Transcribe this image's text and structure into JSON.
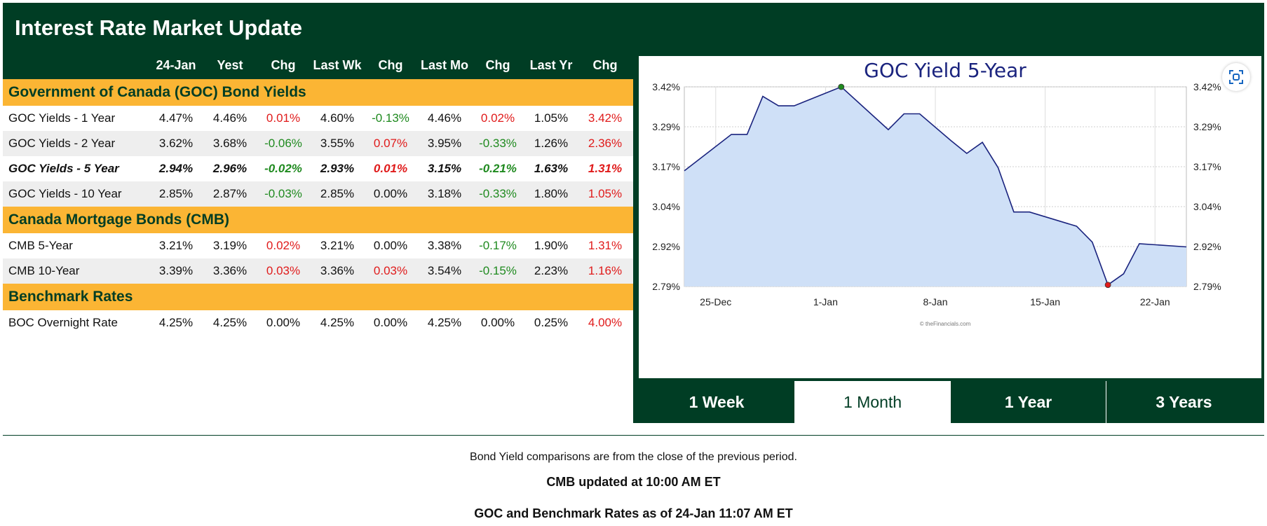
{
  "title": "Interest Rate Market Update",
  "columns": [
    "24-Jan",
    "Yest",
    "Chg",
    "Last Wk",
    "Chg",
    "Last Mo",
    "Chg",
    "Last Yr",
    "Chg"
  ],
  "sections": [
    {
      "title": "Government of Canada (GOC) Bond Yields",
      "rows": [
        {
          "label": "GOC Yields - 1 Year",
          "values": [
            "4.47%",
            "4.46%",
            "0.01%",
            "4.60%",
            "-0.13%",
            "4.46%",
            "0.02%",
            "1.05%",
            "3.42%"
          ]
        },
        {
          "label": "GOC Yields - 2 Year",
          "values": [
            "3.62%",
            "3.68%",
            "-0.06%",
            "3.55%",
            "0.07%",
            "3.95%",
            "-0.33%",
            "1.26%",
            "2.36%"
          ]
        },
        {
          "label": "GOC Yields - 5 Year",
          "values": [
            "2.94%",
            "2.96%",
            "-0.02%",
            "2.93%",
            "0.01%",
            "3.15%",
            "-0.21%",
            "1.63%",
            "1.31%"
          ],
          "emphasis": true
        },
        {
          "label": "GOC Yields - 10 Year",
          "values": [
            "2.85%",
            "2.87%",
            "-0.03%",
            "2.85%",
            "0.00%",
            "3.18%",
            "-0.33%",
            "1.80%",
            "1.05%"
          ]
        }
      ]
    },
    {
      "title": "Canada Mortgage Bonds (CMB)",
      "rows": [
        {
          "label": "CMB 5-Year",
          "values": [
            "3.21%",
            "3.19%",
            "0.02%",
            "3.21%",
            "0.00%",
            "3.38%",
            "-0.17%",
            "1.90%",
            "1.31%"
          ]
        },
        {
          "label": "CMB 10-Year",
          "values": [
            "3.39%",
            "3.36%",
            "0.03%",
            "3.36%",
            "0.03%",
            "3.54%",
            "-0.15%",
            "2.23%",
            "1.16%"
          ]
        }
      ]
    },
    {
      "title": "Benchmark Rates",
      "rows": [
        {
          "label": "BOC Overnight Rate",
          "values": [
            "4.25%",
            "4.25%",
            "0.00%",
            "4.25%",
            "0.00%",
            "4.25%",
            "0.00%",
            "0.25%",
            "4.00%"
          ]
        }
      ]
    }
  ],
  "chart_data": {
    "type": "area",
    "title": "GOC Yield 5-Year",
    "x_ticks": [
      "25-Dec",
      "1-Jan",
      "8-Jan",
      "15-Jan",
      "22-Jan"
    ],
    "y_ticks": [
      "3.42%",
      "3.29%",
      "3.17%",
      "3.04%",
      "2.92%",
      "2.79%"
    ],
    "ylim": [
      2.79,
      3.42
    ],
    "xlim": [
      "2024-12-23",
      "2025-01-24"
    ],
    "grid": true,
    "credit": "© theFinancials.com",
    "points": [
      {
        "x": "2024-12-23",
        "y": 3.155
      },
      {
        "x": "2024-12-26",
        "y": 3.27
      },
      {
        "x": "2024-12-27",
        "y": 3.27
      },
      {
        "x": "2024-12-28",
        "y": 3.39
      },
      {
        "x": "2024-12-29",
        "y": 3.36
      },
      {
        "x": "2024-12-30",
        "y": 3.36
      },
      {
        "x": "2025-01-02",
        "y": 3.42
      },
      {
        "x": "2025-01-05",
        "y": 3.285
      },
      {
        "x": "2025-01-06",
        "y": 3.335
      },
      {
        "x": "2025-01-07",
        "y": 3.335
      },
      {
        "x": "2025-01-09",
        "y": 3.25
      },
      {
        "x": "2025-01-10",
        "y": 3.21
      },
      {
        "x": "2025-01-11",
        "y": 3.245
      },
      {
        "x": "2025-01-12",
        "y": 3.165
      },
      {
        "x": "2025-01-13",
        "y": 3.025
      },
      {
        "x": "2025-01-14",
        "y": 3.025
      },
      {
        "x": "2025-01-17",
        "y": 2.98
      },
      {
        "x": "2025-01-18",
        "y": 2.93
      },
      {
        "x": "2025-01-19",
        "y": 2.795
      },
      {
        "x": "2025-01-20",
        "y": 2.83
      },
      {
        "x": "2025-01-21",
        "y": 2.925
      },
      {
        "x": "2025-01-24",
        "y": 2.915
      }
    ],
    "max_marker": {
      "x": "2025-01-02",
      "y": 3.42,
      "color": "#1f8a1f"
    },
    "min_marker": {
      "x": "2025-01-19",
      "y": 2.795,
      "color": "#e01b1b"
    },
    "line_color": "#1a237e",
    "fill_color": "#cfe0f7",
    "title_color": "#1a237e"
  },
  "ranges": [
    {
      "label": "1 Week",
      "active": false
    },
    {
      "label": "1 Month",
      "active": true
    },
    {
      "label": "1 Year",
      "active": false
    },
    {
      "label": "3 Years",
      "active": false
    }
  ],
  "notes": {
    "line1": "Bond Yield comparisons are from the close of the previous period.",
    "line2": "CMB updated at 10:00 AM ET",
    "line3": "GOC and Benchmark Rates as of 24-Jan 11:07 AM ET"
  },
  "colors": {
    "brand_green": "#003d24",
    "section_orange": "#fbb534",
    "positive_change": "#e01b1b",
    "negative_change": "#1f8a1f"
  },
  "icons": {
    "expand": "expand-icon"
  }
}
